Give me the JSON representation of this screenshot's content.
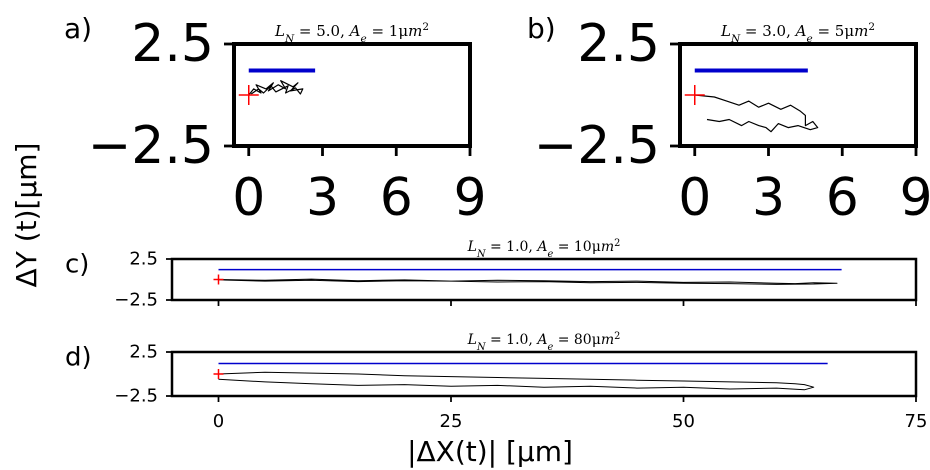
{
  "figure": {
    "ylabel": "ΔY (t)[μm]",
    "xlabel": "|ΔX(t)| [μm]"
  },
  "colors": {
    "trajectory": "#000000",
    "reference": "#0000cc",
    "origin": "#ff0000",
    "frame": "#000000"
  },
  "chart_data": [
    {
      "panel": "a)",
      "type": "line",
      "title": "L_N = 5.0, A_e = 1μm²",
      "xlim": [
        -0.6,
        9
      ],
      "ylim": [
        -2.5,
        2.5
      ],
      "xticks": [
        "0",
        "3",
        "6",
        "9"
      ],
      "yticks": [
        "2.5",
        "−2.5"
      ],
      "reference_line": {
        "x": [
          0,
          2.7
        ],
        "y": 1.2
      },
      "origin": [
        0,
        0
      ],
      "series": [
        {
          "x": [
            0.0,
            0.2,
            0.5,
            0.3,
            0.7,
            1.0,
            0.8,
            1.2,
            1.5,
            1.3,
            1.8,
            2.0,
            1.7,
            2.2,
            2.1,
            1.9,
            1.5,
            1.6,
            1.1,
            0.9,
            0.6,
            0.4,
            0.1
          ],
          "y": [
            0.0,
            0.3,
            0.1,
            0.5,
            0.3,
            0.6,
            0.2,
            0.5,
            0.3,
            0.7,
            0.4,
            0.6,
            0.2,
            0.3,
            0.05,
            0.35,
            0.1,
            0.45,
            0.15,
            0.45,
            0.1,
            0.3,
            0.05
          ]
        }
      ]
    },
    {
      "panel": "b)",
      "type": "line",
      "title": "L_N = 3.0, A_e = 5μm²",
      "xlim": [
        -0.6,
        9
      ],
      "ylim": [
        -2.5,
        2.5
      ],
      "xticks": [
        "0",
        "3",
        "6",
        "9"
      ],
      "yticks": [
        "2.5",
        "−2.5"
      ],
      "reference_line": {
        "x": [
          0,
          4.6
        ],
        "y": 1.2
      },
      "origin": [
        0,
        0
      ],
      "series": [
        {
          "x": [
            0.0,
            0.8,
            1.3,
            1.8,
            2.2,
            2.6,
            3.0,
            3.5,
            3.9,
            4.3,
            4.5,
            4.5,
            4.8,
            5.0,
            4.7,
            4.2,
            3.8,
            3.4,
            3.1,
            2.9,
            2.6,
            2.2,
            1.9,
            1.4,
            1.0,
            0.5
          ],
          "y": [
            0.0,
            -0.1,
            -0.3,
            -0.5,
            -0.3,
            -0.6,
            -0.4,
            -0.7,
            -0.5,
            -0.8,
            -1.0,
            -1.5,
            -1.3,
            -1.6,
            -1.7,
            -1.5,
            -1.6,
            -1.4,
            -1.8,
            -1.6,
            -1.5,
            -1.3,
            -1.5,
            -1.2,
            -1.3,
            -1.2
          ]
        }
      ]
    },
    {
      "panel": "c)",
      "type": "line",
      "title": "L_N = 1.0, A_e = 10μm²",
      "xlim": [
        -5,
        75
      ],
      "ylim": [
        -2.5,
        2.5
      ],
      "xticks": [],
      "yticks": [
        "2.5",
        "−2.5"
      ],
      "reference_line": {
        "x": [
          0,
          67
        ],
        "y": 1.2
      },
      "origin": [
        0,
        0
      ],
      "series": [
        {
          "x": [
            0,
            5,
            10,
            15,
            20,
            25,
            30,
            35,
            40,
            45,
            50,
            55,
            60,
            62,
            64,
            66.5,
            64,
            60,
            55,
            50,
            45,
            40,
            35,
            30,
            25,
            20,
            15,
            10,
            5,
            0
          ],
          "y": [
            0.0,
            -0.1,
            0.05,
            -0.15,
            -0.05,
            -0.2,
            -0.1,
            -0.15,
            -0.25,
            -0.2,
            -0.35,
            -0.3,
            -0.45,
            -0.5,
            -0.4,
            -0.45,
            -0.55,
            -0.6,
            -0.5,
            -0.45,
            -0.35,
            -0.4,
            -0.25,
            -0.3,
            -0.2,
            -0.15,
            -0.25,
            -0.1,
            -0.2,
            -0.05
          ]
        }
      ]
    },
    {
      "panel": "d)",
      "type": "line",
      "title": "L_N = 1.0, A_e = 80μm²",
      "xlim": [
        -5,
        75
      ],
      "ylim": [
        -2.5,
        2.5
      ],
      "xticks": [
        "0",
        "25",
        "50",
        "75"
      ],
      "yticks": [
        "2.5",
        "−2.5"
      ],
      "reference_line": {
        "x": [
          0,
          65.5
        ],
        "y": 1.2
      },
      "origin": [
        0,
        0
      ],
      "series": [
        {
          "x": [
            0,
            5,
            10,
            15,
            20,
            25,
            30,
            35,
            40,
            45,
            50,
            55,
            60,
            62,
            63,
            64,
            63,
            60,
            55,
            50,
            45,
            40,
            35,
            30,
            25,
            20,
            15,
            10,
            5,
            0
          ],
          "y": [
            0.0,
            0.2,
            0.1,
            0.0,
            -0.2,
            -0.3,
            -0.4,
            -0.5,
            -0.6,
            -0.7,
            -0.8,
            -0.9,
            -1.0,
            -1.1,
            -1.2,
            -1.5,
            -1.8,
            -1.6,
            -1.7,
            -1.5,
            -1.6,
            -1.4,
            -1.5,
            -1.3,
            -1.4,
            -1.2,
            -1.3,
            -1.1,
            -0.9,
            -0.6
          ]
        }
      ]
    }
  ]
}
